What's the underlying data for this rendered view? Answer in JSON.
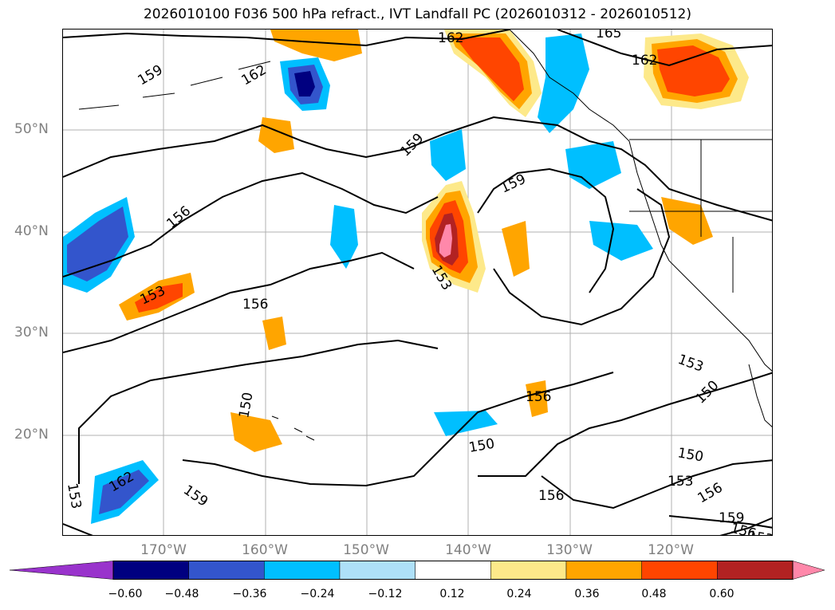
{
  "title": "2026010100 F036 500 hPa refract., IVT Landfall PC (2026010312 - 2026010512)",
  "lat_labels": [
    "50°N",
    "40°N",
    "30°N",
    "20°N"
  ],
  "lon_labels": [
    "170°W",
    "160°W",
    "150°W",
    "140°W",
    "130°W",
    "120°W"
  ],
  "contour_labels": {
    "c162a": "162",
    "c165": "165",
    "c162b": "162",
    "c159a": "159",
    "c162c": "162",
    "c159b": "159",
    "c159c": "159",
    "c156a": "156",
    "c153a": "153",
    "c153b": "153",
    "c156b": "156",
    "c150a": "150",
    "c156c": "156",
    "c150b": "150",
    "c153c": "153",
    "c150c": "150",
    "c150d": "150",
    "c156d": "156",
    "c153d": "153",
    "c156e": "156",
    "c162d": "162",
    "c159d": "159",
    "c153e": "153",
    "c159e": "159",
    "c156f": "156",
    "c153f": "153"
  },
  "colorbar": {
    "ticks": [
      "−0.60",
      "−0.48",
      "−0.36",
      "−0.24",
      "−0.12",
      "0.12",
      "0.24",
      "0.36",
      "0.48",
      "0.60"
    ],
    "colors": [
      "#9933cc",
      "#000080",
      "#3355cc",
      "#00bfff",
      "#aee0f8",
      "#ffffff",
      "#fde98a",
      "#ffa500",
      "#ff4500",
      "#b22222",
      "#ff88aa"
    ]
  }
}
